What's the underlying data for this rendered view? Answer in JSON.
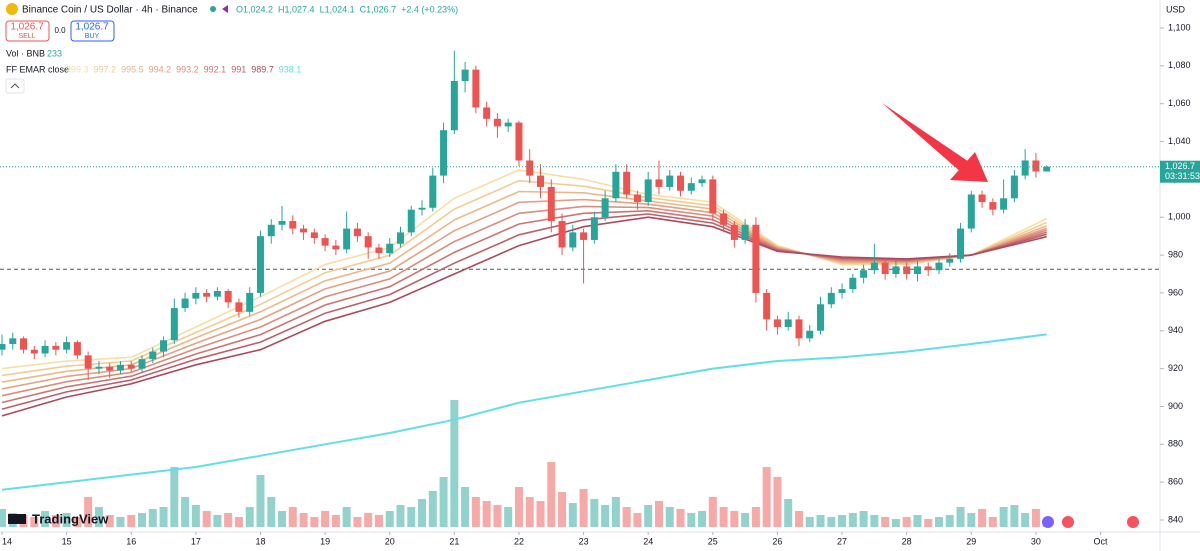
{
  "chart_data": {
    "type": "candlestick",
    "title": "Binance Coin / US Dollar · 4h · Binance",
    "ohlc_legend": [
      "O1,024.2",
      "H1,027.4",
      "L1,024.1",
      "C1,026.7",
      "+2.4 (+0.23%)"
    ],
    "sell_price": "1,026.7",
    "sell_label": "SELL",
    "spread": "0.0",
    "buy_price": "1,026.7",
    "buy_label": "BUY",
    "volume_legend": "Vol · BNB",
    "volume_last": "233",
    "ema_legend": "FF EMAR close",
    "currency": "USD",
    "last_price_label": "1,026.7",
    "countdown": "03:31:53",
    "brand": "TradingView",
    "up_color": "#26a69a",
    "down_color": "#ef5350",
    "ylim": [
      840,
      1100
    ],
    "yticks": [
      840,
      860,
      880,
      900,
      920,
      940,
      960,
      980,
      {
        "value": 1000,
        "label": "1,000"
      },
      {
        "value": 1020,
        "label": "1,020"
      },
      {
        "value": 1040,
        "label": "1,040"
      },
      {
        "value": 1060,
        "label": "1,060"
      },
      {
        "value": 1080,
        "label": "1,080"
      },
      {
        "value": 1100,
        "label": "1,100"
      }
    ],
    "xticks": [
      {
        "value": 0,
        "label": "14"
      },
      {
        "value": 6,
        "label": "15"
      },
      {
        "value": 12,
        "label": "16"
      },
      {
        "value": 18,
        "label": "17"
      },
      {
        "value": 24,
        "label": "18"
      },
      {
        "value": 30,
        "label": "19"
      },
      {
        "value": 36,
        "label": "20"
      },
      {
        "value": 42,
        "label": "21"
      },
      {
        "value": 48,
        "label": "22"
      },
      {
        "value": 54,
        "label": "23"
      },
      {
        "value": 60,
        "label": "24"
      },
      {
        "value": 66,
        "label": "25"
      },
      {
        "value": 72,
        "label": "26"
      },
      {
        "value": 78,
        "label": "27"
      },
      {
        "value": 84,
        "label": "28"
      },
      {
        "value": 90,
        "label": "29"
      },
      {
        "value": 96,
        "label": "30"
      },
      {
        "value": 102,
        "label": "Oct"
      }
    ],
    "hline": 972.5,
    "ohlc": [
      [
        930,
        938,
        927,
        933
      ],
      [
        933,
        939,
        930,
        936
      ],
      [
        936,
        937,
        928,
        930
      ],
      [
        930,
        932,
        925,
        928
      ],
      [
        928,
        935,
        926,
        932
      ],
      [
        932,
        934,
        927,
        930
      ],
      [
        930,
        937,
        928,
        934
      ],
      [
        934,
        935,
        925,
        927
      ],
      [
        927,
        929,
        914,
        920
      ],
      [
        920,
        924,
        917,
        921
      ],
      [
        921,
        923,
        915,
        919
      ],
      [
        919,
        924,
        917,
        922
      ],
      [
        922,
        924,
        918,
        920
      ],
      [
        920,
        927,
        918,
        925
      ],
      [
        925,
        931,
        923,
        929
      ],
      [
        929,
        937,
        926,
        935
      ],
      [
        935,
        957,
        933,
        952
      ],
      [
        952,
        960,
        950,
        957
      ],
      [
        957,
        963,
        954,
        960
      ],
      [
        960,
        962,
        955,
        958
      ],
      [
        958,
        963,
        956,
        961
      ],
      [
        961,
        962,
        952,
        955
      ],
      [
        955,
        957,
        947,
        950
      ],
      [
        950,
        963,
        948,
        960
      ],
      [
        960,
        993,
        958,
        990
      ],
      [
        990,
        999,
        986,
        996
      ],
      [
        996,
        1006,
        993,
        998
      ],
      [
        998,
        1001,
        991,
        994
      ],
      [
        994,
        996,
        988,
        992
      ],
      [
        992,
        994,
        986,
        989
      ],
      [
        989,
        991,
        982,
        985
      ],
      [
        985,
        988,
        980,
        983
      ],
      [
        983,
        1003,
        981,
        994
      ],
      [
        994,
        997,
        987,
        990
      ],
      [
        990,
        992,
        978,
        984
      ],
      [
        984,
        986,
        978,
        981
      ],
      [
        981,
        989,
        979,
        986
      ],
      [
        986,
        995,
        984,
        992
      ],
      [
        992,
        1006,
        990,
        1004
      ],
      [
        1004,
        1009,
        1001,
        1005
      ],
      [
        1005,
        1026,
        1003,
        1022
      ],
      [
        1022,
        1050,
        1018,
        1046
      ],
      [
        1046,
        1088,
        1044,
        1072
      ],
      [
        1072,
        1082,
        1066,
        1078
      ],
      [
        1078,
        1080,
        1055,
        1058
      ],
      [
        1058,
        1061,
        1048,
        1052
      ],
      [
        1052,
        1055,
        1042,
        1048
      ],
      [
        1048,
        1052,
        1045,
        1050
      ],
      [
        1050,
        1051,
        1027,
        1030
      ],
      [
        1030,
        1036,
        1018,
        1022
      ],
      [
        1022,
        1028,
        1010,
        1016
      ],
      [
        1016,
        1020,
        992,
        998
      ],
      [
        998,
        1002,
        980,
        984
      ],
      [
        984,
        996,
        982,
        992
      ],
      [
        992,
        994,
        965,
        988
      ],
      [
        988,
        1003,
        986,
        1000
      ],
      [
        1000,
        1014,
        998,
        1010
      ],
      [
        1010,
        1028,
        1008,
        1024
      ],
      [
        1024,
        1028,
        1010,
        1012
      ],
      [
        1012,
        1014,
        1004,
        1008
      ],
      [
        1008,
        1024,
        1006,
        1020
      ],
      [
        1020,
        1030,
        1012,
        1016
      ],
      [
        1016,
        1025,
        1014,
        1022
      ],
      [
        1022,
        1024,
        1011,
        1014
      ],
      [
        1014,
        1021,
        1012,
        1018
      ],
      [
        1018,
        1022,
        1016,
        1020
      ],
      [
        1020,
        1022,
        998,
        1002
      ],
      [
        1002,
        1004,
        992,
        996
      ],
      [
        996,
        998,
        984,
        988
      ],
      [
        988,
        999,
        986,
        996
      ],
      [
        996,
        1000,
        955,
        960
      ],
      [
        960,
        962,
        940,
        946
      ],
      [
        946,
        948,
        938,
        942
      ],
      [
        942,
        950,
        940,
        946
      ],
      [
        946,
        948,
        932,
        936
      ],
      [
        936,
        943,
        934,
        940
      ],
      [
        940,
        958,
        938,
        954
      ],
      [
        954,
        963,
        952,
        960
      ],
      [
        960,
        965,
        957,
        962
      ],
      [
        962,
        970,
        960,
        968
      ],
      [
        968,
        975,
        965,
        972
      ],
      [
        972,
        986,
        970,
        976
      ],
      [
        976,
        978,
        967,
        970
      ],
      [
        970,
        977,
        968,
        974
      ],
      [
        974,
        976,
        967,
        970
      ],
      [
        970,
        977,
        966,
        974
      ],
      [
        974,
        976,
        969,
        972
      ],
      [
        972,
        979,
        970,
        976
      ],
      [
        976,
        981,
        974,
        978
      ],
      [
        978,
        997,
        976,
        994
      ],
      [
        994,
        1014,
        992,
        1012
      ],
      [
        1012,
        1014,
        1005,
        1008
      ],
      [
        1008,
        1010,
        1001,
        1004
      ],
      [
        1004,
        1020,
        1002,
        1010
      ],
      [
        1010,
        1025,
        1008,
        1022
      ],
      [
        1022,
        1036,
        1020,
        1030
      ],
      [
        1030,
        1034,
        1021,
        1024.2
      ],
      [
        1024.2,
        1027.4,
        1024.1,
        1026.7
      ]
    ],
    "volume": [
      540,
      420,
      360,
      300,
      480,
      360,
      420,
      300,
      900,
      600,
      360,
      300,
      360,
      420,
      540,
      600,
      1800,
      900,
      660,
      480,
      360,
      420,
      300,
      600,
      1560,
      900,
      480,
      600,
      420,
      300,
      480,
      360,
      600,
      300,
      420,
      360,
      480,
      660,
      600,
      840,
      1080,
      1500,
      3810,
      1200,
      900,
      780,
      660,
      600,
      1200,
      900,
      780,
      1950,
      1050,
      720,
      1140,
      840,
      660,
      900,
      600,
      420,
      660,
      780,
      600,
      540,
      420,
      480,
      900,
      600,
      480,
      420,
      600,
      1800,
      1500,
      840,
      480,
      300,
      360,
      300,
      360,
      420,
      480,
      360,
      300,
      240,
      300,
      360,
      240,
      300,
      360,
      600,
      420,
      540,
      300,
      600,
      660,
      420,
      540,
      233
    ],
    "volume_lim": [
      0,
      4200
    ],
    "ema": {
      "x": [
        0,
        6,
        12,
        18,
        24,
        30,
        36,
        42,
        48,
        54,
        60,
        66,
        72,
        78,
        84,
        90,
        97
      ],
      "series": [
        {
          "color": "#f6dfa0",
          "values": [
            920,
            924,
            926,
            942,
            958,
            975,
            984,
            1010,
            1025,
            1020,
            1012,
            1008,
            985,
            975,
            975,
            980,
            999.3
          ]
        },
        {
          "color": "#f3cc93",
          "values": [
            916.4,
            921.3,
            924,
            939.1,
            954,
            970.7,
            979.9,
            1004.3,
            1019.3,
            1016.4,
            1010.3,
            1006.1,
            984.6,
            975.6,
            975.4,
            980,
            997.2
          ]
        },
        {
          "color": "#eeb789",
          "values": [
            912.9,
            918.6,
            922,
            936.3,
            950,
            966.4,
            975.7,
            998.6,
            1013.6,
            1012.9,
            1008.6,
            1004.3,
            984.1,
            976.1,
            975.9,
            980,
            995.5
          ]
        },
        {
          "color": "#e6a182",
          "values": [
            909.3,
            915.9,
            920,
            933.4,
            946,
            962.1,
            971.6,
            992.9,
            1007.9,
            1009.3,
            1006.9,
            1002.4,
            983.7,
            976.7,
            976.3,
            980,
            994.2
          ]
        },
        {
          "color": "#db8c7b",
          "values": [
            905.7,
            913.1,
            918,
            930.6,
            942,
            957.9,
            967.4,
            987.1,
            1002.1,
            1005.7,
            1005.1,
            1000.6,
            983.3,
            977.3,
            976.7,
            980,
            993.2
          ]
        },
        {
          "color": "#cd7572",
          "values": [
            902.1,
            910.4,
            916,
            927.7,
            938,
            953.6,
            963.3,
            981.4,
            996.4,
            1002.1,
            1003.4,
            998.7,
            982.9,
            977.9,
            977.1,
            980,
            992.1
          ]
        },
        {
          "color": "#bd5f69",
          "values": [
            898.6,
            907.7,
            914,
            924.9,
            934,
            949.3,
            959.1,
            975.7,
            990.7,
            998.6,
            1001.7,
            996.9,
            982.4,
            978.4,
            977.6,
            980,
            991.0
          ]
        },
        {
          "color": "#ab4a5c",
          "values": [
            895,
            905,
            912,
            922,
            930,
            945,
            955,
            970,
            985,
            995,
            1000,
            995,
            982,
            979,
            978,
            980,
            989.7
          ]
        },
        {
          "color": "#5ee0e6",
          "values": [
            856,
            860,
            864,
            868,
            874,
            880,
            886,
            893,
            902,
            908,
            914,
            920,
            924,
            926,
            929,
            933,
            938.1
          ]
        }
      ]
    }
  }
}
